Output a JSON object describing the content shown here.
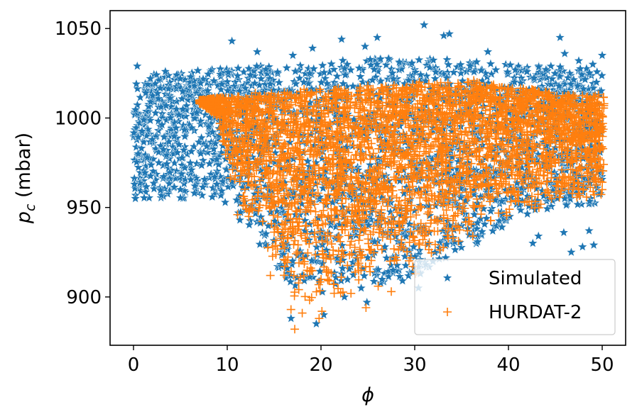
{
  "chart_data": {
    "type": "scatter",
    "xlabel": "ϕ",
    "ylabel": "p_c (mbar)",
    "xlim": [
      -2.5,
      52.5
    ],
    "ylim": [
      873,
      1060
    ],
    "xticks": [
      0,
      10,
      20,
      30,
      40,
      50
    ],
    "yticks": [
      900,
      950,
      1000,
      1050
    ],
    "grid": false,
    "legend_position": "bottom-right",
    "colors": {
      "simulated": "#1f77b4",
      "hurdat": "#ff7f0e"
    },
    "series": [
      {
        "name": "Simulated",
        "marker": "star",
        "points": [
          [
            0.2,
            955
          ],
          [
            0.4,
            1029
          ],
          [
            0.3,
            1019
          ],
          [
            1.3,
            1014
          ],
          [
            1.8,
            1022
          ],
          [
            3.4,
            1026
          ],
          [
            6.1,
            1023
          ],
          [
            0.1,
            963
          ],
          [
            0.5,
            980
          ],
          [
            1.1,
            999
          ],
          [
            2.0,
            988
          ],
          [
            2.7,
            975
          ],
          [
            3.9,
            1011
          ],
          [
            5.0,
            960
          ],
          [
            6.5,
            958
          ],
          [
            10.5,
            1043
          ],
          [
            13.2,
            1037
          ],
          [
            17.0,
            1035
          ],
          [
            19.1,
            1039
          ],
          [
            22.2,
            1044
          ],
          [
            24.7,
            1040
          ],
          [
            26.0,
            1045
          ],
          [
            31.0,
            1052
          ],
          [
            33.1,
            1046
          ],
          [
            33.7,
            1047
          ],
          [
            45.5,
            1045
          ],
          [
            37.8,
            1037
          ],
          [
            44.0,
            1027
          ],
          [
            46.0,
            1036
          ],
          [
            47.5,
            1032
          ],
          [
            49.0,
            1030
          ],
          [
            50.0,
            1035
          ],
          [
            16.8,
            888
          ],
          [
            20.3,
            890
          ],
          [
            19.5,
            885
          ],
          [
            24.9,
            897
          ],
          [
            22.5,
            900
          ],
          [
            30.4,
            905
          ],
          [
            42.6,
            930
          ],
          [
            46.7,
            925
          ],
          [
            47.9,
            928
          ],
          [
            49.1,
            929
          ],
          [
            45.9,
            936
          ],
          [
            48.6,
            937
          ],
          [
            43.2,
            934
          ],
          [
            39.3,
            939
          ],
          [
            30.6,
            913
          ],
          [
            28.7,
            909
          ],
          [
            31.2,
            918
          ],
          [
            35.4,
            943
          ]
        ]
      },
      {
        "name": "HURDAT-2",
        "marker": "plus",
        "points": [
          [
            7.5,
            1009
          ],
          [
            8.5,
            1010
          ],
          [
            10.0,
            1008
          ],
          [
            12.0,
            1005
          ],
          [
            12.3,
            945
          ],
          [
            14.6,
            912
          ],
          [
            15.9,
            929
          ],
          [
            17.2,
            882
          ],
          [
            16.8,
            893
          ],
          [
            18.0,
            891
          ],
          [
            19.8,
            888
          ],
          [
            20.1,
            892
          ],
          [
            24.8,
            894
          ],
          [
            23.2,
            902
          ],
          [
            26.1,
            906
          ],
          [
            27.5,
            903
          ],
          [
            29.8,
            917
          ],
          [
            30.1,
            913
          ],
          [
            34.0,
            937
          ],
          [
            36.2,
            934
          ],
          [
            40.1,
            949
          ],
          [
            44.6,
            955
          ],
          [
            50.0,
            960
          ],
          [
            50.2,
            1008
          ],
          [
            46.3,
            1012
          ],
          [
            42.5,
            1016
          ],
          [
            36.3,
            1021
          ],
          [
            30.5,
            1020
          ],
          [
            25.0,
            1018
          ],
          [
            18.2,
            1016
          ],
          [
            13.0,
            1014
          ],
          [
            49.6,
            1013
          ],
          [
            11.1,
            946
          ],
          [
            9.9,
            995
          ]
        ]
      }
    ]
  }
}
